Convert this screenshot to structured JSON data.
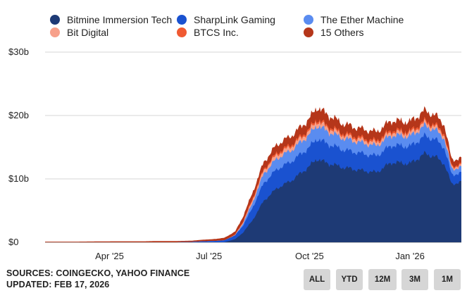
{
  "chart_data": {
    "type": "area",
    "stacked": true,
    "title": "",
    "xlabel": "",
    "ylabel": "",
    "x_tick_labels": [
      "Apr '25",
      "Jul '25",
      "Oct '25",
      "Jan '26"
    ],
    "y_tick_labels": [
      "$0",
      "$10b",
      "$20b",
      "$30b"
    ],
    "y_ticks": [
      0,
      10,
      20,
      30
    ],
    "ylim": [
      0,
      30
    ],
    "xlim": [
      "2025-02-01",
      "2026-02-17"
    ],
    "grid": true,
    "legend_position": "top",
    "dates": [
      "2025-02-01",
      "2025-03-01",
      "2025-04-01",
      "2025-05-01",
      "2025-05-15",
      "2025-06-01",
      "2025-06-15",
      "2025-06-25",
      "2025-07-05",
      "2025-07-15",
      "2025-07-25",
      "2025-08-01",
      "2025-08-10",
      "2025-08-20",
      "2025-09-01",
      "2025-09-15",
      "2025-10-01",
      "2025-10-08",
      "2025-10-15",
      "2025-11-01",
      "2025-11-15",
      "2025-12-01",
      "2025-12-15",
      "2026-01-01",
      "2026-01-15",
      "2026-01-25",
      "2026-02-01",
      "2026-02-08",
      "2026-02-17"
    ],
    "series": [
      {
        "name": "Bitmine Immersion Tech",
        "color": "#1e3a75",
        "values": [
          0,
          0,
          0,
          0,
          0,
          0,
          0,
          0,
          0,
          0,
          0.5,
          1.5,
          3.5,
          6.5,
          8.5,
          9.8,
          12.0,
          13.2,
          12.6,
          11.8,
          11.4,
          11.0,
          12.6,
          12.4,
          14.0,
          13.4,
          12.5,
          9.2,
          9.5
        ]
      },
      {
        "name": "SharpLink Gaming",
        "color": "#1a52d0",
        "values": [
          0,
          0,
          0,
          0,
          0,
          0,
          0.05,
          0.15,
          0.2,
          0.3,
          0.6,
          1.1,
          2.0,
          2.8,
          3.0,
          3.0,
          3.0,
          3.2,
          3.1,
          2.8,
          2.7,
          2.6,
          2.7,
          2.7,
          2.8,
          2.7,
          2.6,
          1.5,
          1.4
        ]
      },
      {
        "name": "The Ether Machine",
        "color": "#5a8cf0",
        "values": [
          0,
          0,
          0,
          0,
          0,
          0,
          0,
          0,
          0,
          0,
          0,
          0.3,
          0.8,
          1.5,
          1.7,
          1.8,
          2.0,
          2.1,
          2.0,
          1.8,
          1.7,
          1.6,
          1.6,
          1.6,
          1.6,
          1.5,
          1.5,
          0.9,
          0.9
        ]
      },
      {
        "name": "Bit Digital",
        "color": "#f7a08a",
        "values": [
          0,
          0,
          0,
          0,
          0,
          0,
          0,
          0,
          0,
          0,
          0.1,
          0.2,
          0.4,
          0.5,
          0.6,
          0.6,
          0.6,
          0.7,
          0.6,
          0.5,
          0.5,
          0.5,
          0.5,
          0.5,
          0.5,
          0.5,
          0.5,
          0.3,
          0.3
        ]
      },
      {
        "name": "BTCS Inc.",
        "color": "#f05a32",
        "values": [
          0,
          0,
          0,
          0,
          0,
          0,
          0,
          0,
          0,
          0,
          0,
          0.1,
          0.2,
          0.2,
          0.3,
          0.3,
          0.3,
          0.3,
          0.3,
          0.3,
          0.3,
          0.3,
          0.3,
          0.3,
          0.3,
          0.3,
          0.3,
          0.2,
          0.2
        ]
      },
      {
        "name": "15 Others",
        "color": "#b5361a",
        "values": [
          0.1,
          0.1,
          0.15,
          0.15,
          0.2,
          0.2,
          0.2,
          0.25,
          0.3,
          0.4,
          0.5,
          0.8,
          1.0,
          1.1,
          1.3,
          1.4,
          1.6,
          1.9,
          1.8,
          1.5,
          1.4,
          1.4,
          1.5,
          1.5,
          1.6,
          1.5,
          1.4,
          1.0,
          0.9
        ]
      }
    ]
  },
  "footer": {
    "sources": "SOURCES: COINGECKO, YAHOO FINANCE",
    "updated": "UPDATED: FEB 17, 2026"
  },
  "range_buttons": [
    "ALL",
    "YTD",
    "12M",
    "3M",
    "1M"
  ]
}
